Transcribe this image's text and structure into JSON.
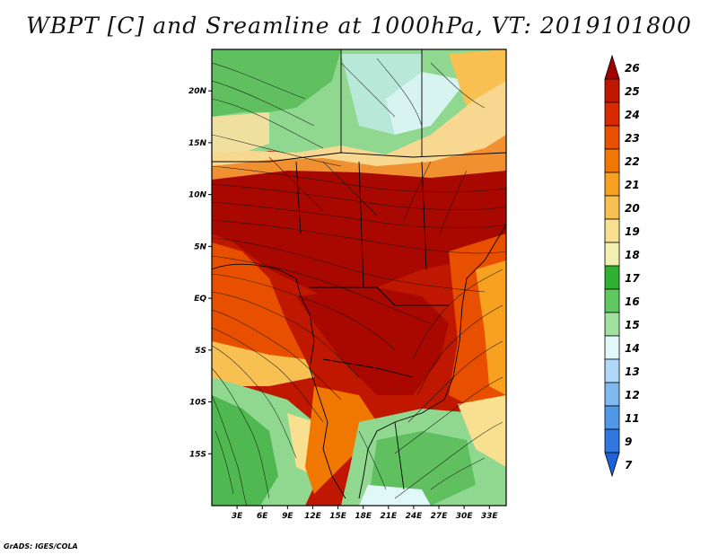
{
  "title": "WBPT [C] and Sreamline at 1000hPa, VT: 2019101800",
  "footer": "GrADS: IGES/COLA",
  "map": {
    "lon_range": [
      0,
      35
    ],
    "lat_range": [
      -20,
      24
    ],
    "x_tick_labels": [
      "3E",
      "6E",
      "9E",
      "12E",
      "15E",
      "18E",
      "21E",
      "24E",
      "27E",
      "30E",
      "33E"
    ],
    "x_tick_values": [
      3,
      6,
      9,
      12,
      15,
      18,
      21,
      24,
      27,
      30,
      33
    ],
    "y_tick_labels": [
      "20N",
      "15N",
      "10N",
      "5N",
      "EQ",
      "5S",
      "10S",
      "15S"
    ],
    "y_tick_values": [
      20,
      15,
      10,
      5,
      0,
      -5,
      -10,
      -15
    ],
    "field": "WBPT [C]",
    "streamline_level": "1000hPa"
  },
  "colorbar": {
    "labels": [
      "26",
      "25",
      "24",
      "23",
      "22",
      "21",
      "20",
      "19",
      "18",
      "17",
      "16",
      "15",
      "14",
      "13",
      "12",
      "11",
      "9",
      "7"
    ],
    "colors": [
      "#a00000",
      "#c01800",
      "#d82a00",
      "#e85000",
      "#f07800",
      "#f8a020",
      "#f8c050",
      "#f8e090",
      "#f0f0b0",
      "#30b030",
      "#60c860",
      "#a0e0a0",
      "#e0f8f8",
      "#b0d8f8",
      "#80b8f0",
      "#5098e8",
      "#3078e0",
      "#2060d8"
    ]
  }
}
